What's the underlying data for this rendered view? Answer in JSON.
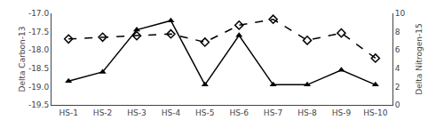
{
  "chart_data": {
    "type": "line",
    "categories": [
      "HS-1",
      "HS-2",
      "HS-3",
      "HS-4",
      "HS-5",
      "HS-6",
      "HS-7",
      "HS-8",
      "HS-9",
      "HS-10"
    ],
    "series": [
      {
        "values": [
          -18.85,
          -18.6,
          -17.45,
          -17.2,
          -18.95,
          -17.6,
          -18.95,
          -18.95,
          -18.55,
          -18.95
        ],
        "color": "black",
        "marker": "triangle-up",
        "line_style": "solid",
        "axis": "y"
      },
      {
        "values": [
          7.2,
          7.4,
          7.55,
          7.75,
          6.85,
          8.7,
          9.35,
          7.05,
          7.85,
          5.1
        ],
        "color": "black",
        "marker": "diamond-open",
        "line_style": "dashed",
        "axis": "y2"
      }
    ],
    "ylabel": "Delta Carbon-13",
    "y2label": "Delta Nitrogen-15",
    "ylim": [
      -19.5,
      -17.0
    ],
    "yticks": [
      -19.5,
      {
        "value": -19.0,
        "label": "-19.0"
      },
      -18.5,
      {
        "value": -18.0,
        "label": "-18.0"
      },
      -17.5,
      {
        "value": -17.0,
        "label": "-17.0"
      }
    ],
    "y2lim": [
      0,
      10
    ],
    "y2ticks": [
      0,
      2,
      4,
      6,
      8,
      10
    ],
    "grid": false
  }
}
